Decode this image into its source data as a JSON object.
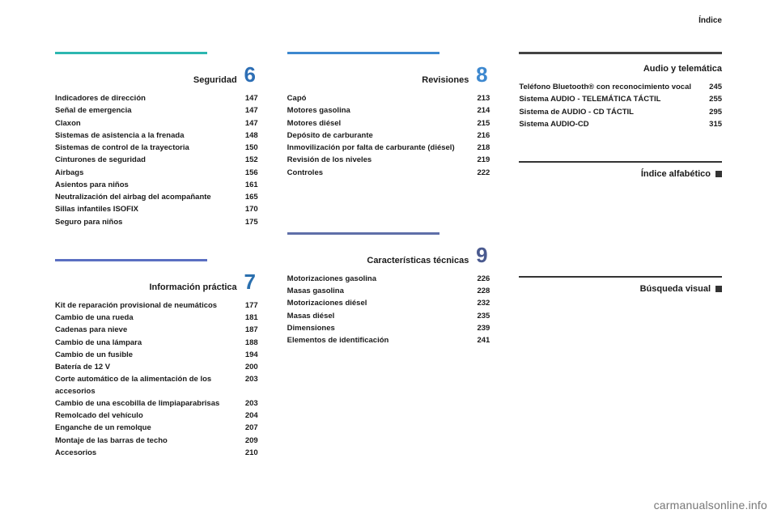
{
  "top_right": "Índice",
  "watermark": "carmanualsonline.info",
  "sections": {
    "seguridad": {
      "rule_color": "#2db7b0",
      "number": "6",
      "number_color": "#2e6fb5",
      "heading": "Seguridad",
      "items": [
        {
          "label": "Indicadores de dirección",
          "pg": "147"
        },
        {
          "label": "Señal de emergencia",
          "pg": "147"
        },
        {
          "label": "Claxon",
          "pg": "147"
        },
        {
          "label": "Sistemas de asistencia a la frenada",
          "pg": "148"
        },
        {
          "label": "Sistemas de control de la trayectoria",
          "pg": "150"
        },
        {
          "label": "Cinturones de seguridad",
          "pg": "152"
        },
        {
          "label": "Airbags",
          "pg": "156"
        },
        {
          "label": "Asientos para niños",
          "pg": "161"
        },
        {
          "label": "Neutralización del airbag del acompañante",
          "pg": "165"
        },
        {
          "label": "Sillas infantiles ISOFIX",
          "pg": "170"
        },
        {
          "label": "Seguro para niños",
          "pg": "175"
        }
      ]
    },
    "informacion": {
      "rule_color": "#5a6fc2",
      "number": "7",
      "number_color": "#2a6fae",
      "heading": "Información práctica",
      "items": [
        {
          "label": "Kit de reparación provisional de neumáticos",
          "pg": "177"
        },
        {
          "label": "Cambio de una rueda",
          "pg": "181"
        },
        {
          "label": "Cadenas para nieve",
          "pg": "187"
        },
        {
          "label": "Cambio de una lámpara",
          "pg": "188"
        },
        {
          "label": "Cambio de un fusible",
          "pg": "194"
        },
        {
          "label": "Batería de 12 V",
          "pg": "200"
        },
        {
          "label": "Corte automático de la alimentación de los accesorios",
          "pg": "203"
        },
        {
          "label": "Cambio de una escobilla de limpiaparabrisas",
          "pg": "203"
        },
        {
          "label": "Remolcado del vehículo",
          "pg": "204"
        },
        {
          "label": "Enganche de un remolque",
          "pg": "207"
        },
        {
          "label": "Montaje de las barras de techo",
          "pg": "209"
        },
        {
          "label": "Accesorios",
          "pg": "210"
        }
      ]
    },
    "revisiones": {
      "rule_color": "#3d88cf",
      "number": "8",
      "number_color": "#3d88cf",
      "heading": "Revisiones",
      "items": [
        {
          "label": "Capó",
          "pg": "213"
        },
        {
          "label": "Motores gasolina",
          "pg": "214"
        },
        {
          "label": "Motores diésel",
          "pg": "215"
        },
        {
          "label": "Depósito de carburante",
          "pg": "216"
        },
        {
          "label": "Inmovilización por falta de carburante (diésel)",
          "pg": "218"
        },
        {
          "label": "Revisión de los niveles",
          "pg": "219"
        },
        {
          "label": "Controles",
          "pg": "222"
        }
      ]
    },
    "caracteristicas": {
      "rule_color": "#5f6fa8",
      "number": "9",
      "number_color": "#4a5a8f",
      "heading": "Características técnicas",
      "items": [
        {
          "label": "Motorizaciones gasolina",
          "pg": "226"
        },
        {
          "label": "Masas gasolina",
          "pg": "228"
        },
        {
          "label": "Motorizaciones diésel",
          "pg": "232"
        },
        {
          "label": "Masas diésel",
          "pg": "235"
        },
        {
          "label": "Dimensiones",
          "pg": "239"
        },
        {
          "label": "Elementos de identificación",
          "pg": "241"
        }
      ]
    },
    "audio": {
      "rule_color": "#444444",
      "number": "",
      "heading": "Audio y telemática",
      "items": [
        {
          "label": "Teléfono Bluetooth® con reconocimiento vocal",
          "pg": "245"
        },
        {
          "label": "Sistema AUDIO - TELEMÁTICA TÁCTIL",
          "pg": "255"
        },
        {
          "label": "Sistema de AUDIO - CD TÁCTIL",
          "pg": "295"
        },
        {
          "label": "Sistema AUDIO-CD",
          "pg": "315"
        }
      ]
    }
  },
  "mini": {
    "alfabetico": "Índice alfabético",
    "visual": "Búsqueda visual"
  }
}
